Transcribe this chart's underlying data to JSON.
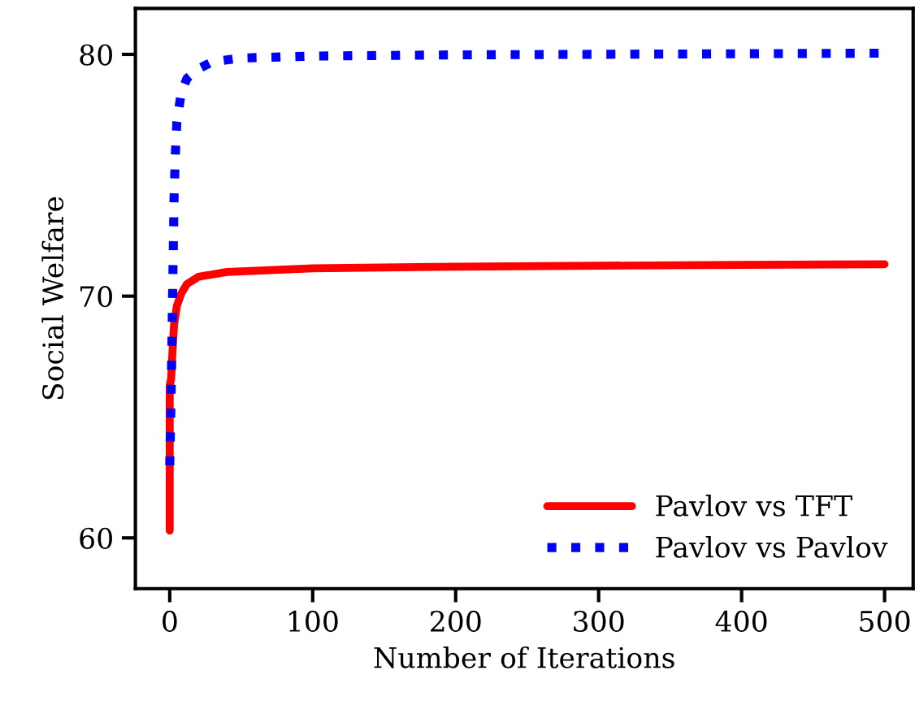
{
  "chart_data": {
    "type": "line",
    "xlabel": "Number of Iterations",
    "ylabel": "Social Welfare",
    "xlim": [
      -24,
      520
    ],
    "ylim": [
      57.9,
      81.9
    ],
    "xticks": [
      0,
      100,
      200,
      300,
      400,
      500
    ],
    "yticks": [
      60,
      70,
      80
    ],
    "grid": false,
    "legend": "bottom right",
    "marker": "none",
    "series": [
      {
        "name": "Pavlov vs TFT",
        "color": "#ff0000",
        "line_style": "solid",
        "x": [
          0,
          0,
          1,
          2,
          3,
          5,
          8,
          12,
          20,
          40,
          100,
          200,
          300,
          400,
          500
        ],
        "values": [
          60.3,
          66.3,
          66.6,
          67.8,
          68.8,
          69.6,
          70.1,
          70.5,
          70.8,
          71.0,
          71.15,
          71.22,
          71.26,
          71.29,
          71.32
        ]
      },
      {
        "name": "Pavlov vs Pavlov",
        "color": "#0000ff",
        "line_style": "dotted",
        "x": [
          0,
          1,
          2,
          3,
          4,
          5,
          8,
          12,
          20,
          30,
          50,
          100,
          200,
          500
        ],
        "values": [
          63.0,
          66.0,
          70.0,
          74.0,
          76.0,
          77.2,
          78.4,
          79.0,
          79.4,
          79.7,
          79.85,
          79.93,
          79.98,
          80.05
        ]
      }
    ]
  }
}
